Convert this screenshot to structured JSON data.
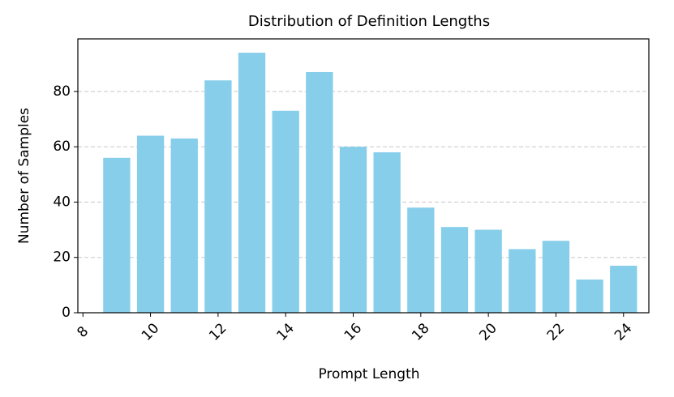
{
  "chart_data": {
    "type": "bar",
    "title": "Distribution of Definition Lengths",
    "x_label": "Prompt Length",
    "y_label": "Number of Samples",
    "x": [
      9,
      10,
      11,
      12,
      13,
      14,
      15,
      16,
      17,
      18,
      19,
      20,
      21,
      22,
      23,
      24
    ],
    "values": [
      56,
      64,
      63,
      84,
      94,
      73,
      87,
      60,
      58,
      38,
      31,
      30,
      23,
      26,
      12,
      17
    ],
    "color": "#87ceeb",
    "xlim": [
      7.85,
      24.75
    ],
    "xticks": [
      8,
      10,
      12,
      14,
      16,
      18,
      20,
      22,
      24
    ],
    "ylim": [
      0,
      99
    ],
    "yticks": [
      0,
      20,
      40,
      60,
      80
    ],
    "grid": true
  }
}
